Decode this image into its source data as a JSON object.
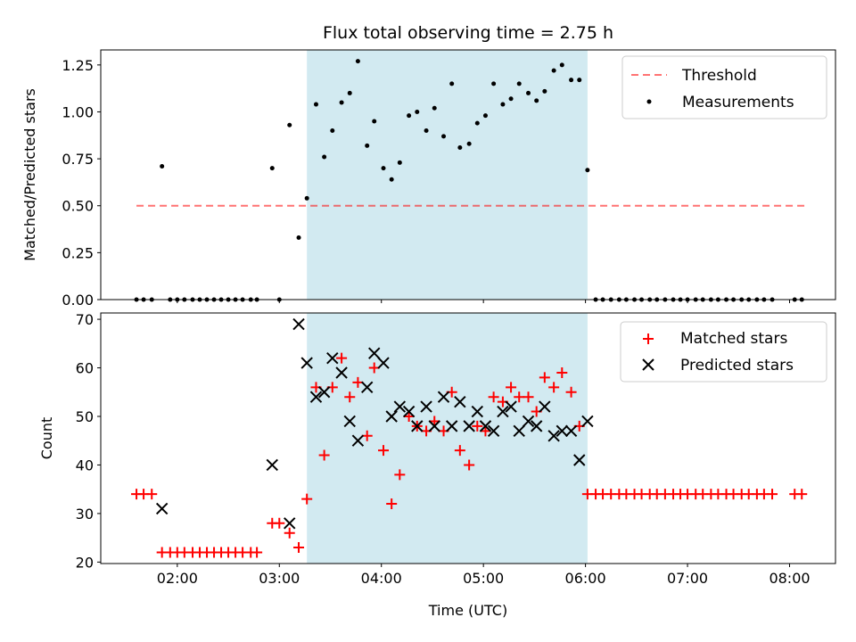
{
  "title": "Flux total observing time = 2.75 h",
  "colors": {
    "shade": "#add8e6",
    "threshold": "#ff0000",
    "measurements": "#000000",
    "matched": "#ff0000",
    "predicted": "#000000"
  },
  "chart_data": [
    {
      "type": "scatter",
      "panel": "top",
      "ylabel": "Matched/Predicted stars",
      "xlim": [
        1.25,
        8.45
      ],
      "ylim": [
        0,
        1.33
      ],
      "yticks": [
        "0.00",
        "0.25",
        "0.50",
        "0.75",
        "1.00",
        "1.25"
      ],
      "ytick_values": [
        0,
        0.25,
        0.5,
        0.75,
        1.0,
        1.25
      ],
      "shaded_span": [
        3.27,
        6.02
      ],
      "legend_position": "upper right",
      "threshold": {
        "name": "Threshold",
        "style": "dashed",
        "y": 0.5,
        "x": [
          1.6,
          8.15
        ]
      },
      "measurements": {
        "name": "Measurements",
        "x": [
          1.6,
          1.67,
          1.75,
          1.85,
          1.93,
          2.0,
          2.07,
          2.15,
          2.22,
          2.29,
          2.36,
          2.43,
          2.5,
          2.57,
          2.64,
          2.72,
          2.78,
          2.93,
          3.0,
          3.1,
          3.19,
          3.27,
          3.36,
          3.44,
          3.52,
          3.61,
          3.69,
          3.77,
          3.86,
          3.93,
          4.02,
          4.1,
          4.18,
          4.27,
          4.35,
          4.44,
          4.52,
          4.61,
          4.69,
          4.77,
          4.86,
          4.94,
          5.02,
          5.1,
          5.19,
          5.27,
          5.35,
          5.44,
          5.52,
          5.6,
          5.69,
          5.77,
          5.86,
          5.94,
          6.02,
          6.1,
          6.17,
          6.25,
          6.33,
          6.4,
          6.48,
          6.55,
          6.63,
          6.7,
          6.78,
          6.86,
          6.93,
          7.0,
          7.08,
          7.15,
          7.23,
          7.3,
          7.38,
          7.45,
          7.53,
          7.6,
          7.68,
          7.75,
          7.83,
          8.05,
          8.12
        ],
        "y": [
          0,
          0,
          0,
          0.71,
          0,
          0,
          0,
          0,
          0,
          0,
          0,
          0,
          0,
          0,
          0,
          0,
          0,
          0.7,
          0,
          0.93,
          0.33,
          0.54,
          1.04,
          0.76,
          0.9,
          1.05,
          1.1,
          1.27,
          0.82,
          0.95,
          0.7,
          0.64,
          0.73,
          0.98,
          1.0,
          0.9,
          1.02,
          0.87,
          1.15,
          0.81,
          0.83,
          0.94,
          0.98,
          1.15,
          1.04,
          1.07,
          1.15,
          1.1,
          1.06,
          1.11,
          1.22,
          1.25,
          1.17,
          1.17,
          0.69,
          0,
          0,
          0,
          0,
          0,
          0,
          0,
          0,
          0,
          0,
          0,
          0,
          0,
          0,
          0,
          0,
          0,
          0,
          0,
          0,
          0,
          0,
          0,
          0,
          0,
          0
        ]
      }
    },
    {
      "type": "scatter",
      "panel": "bottom",
      "xlabel": "Time (UTC)",
      "ylabel": "Count",
      "xlim": [
        1.25,
        8.45
      ],
      "ylim": [
        19.7,
        71.3
      ],
      "xticks": [
        "02:00",
        "03:00",
        "04:00",
        "05:00",
        "06:00",
        "07:00",
        "08:00"
      ],
      "xtick_values": [
        2,
        3,
        4,
        5,
        6,
        7,
        8
      ],
      "yticks": [
        "20",
        "30",
        "40",
        "50",
        "60",
        "70"
      ],
      "ytick_values": [
        20,
        30,
        40,
        50,
        60,
        70
      ],
      "shaded_span": [
        3.27,
        6.02
      ],
      "legend_position": "upper right",
      "matched": {
        "name": "Matched stars",
        "marker": "+",
        "x": [
          1.6,
          1.67,
          1.75,
          1.85,
          1.93,
          2.0,
          2.07,
          2.15,
          2.22,
          2.29,
          2.36,
          2.43,
          2.5,
          2.57,
          2.64,
          2.72,
          2.78,
          2.93,
          3.0,
          3.1,
          3.19,
          3.27,
          3.36,
          3.44,
          3.52,
          3.61,
          3.69,
          3.77,
          3.86,
          3.93,
          4.02,
          4.1,
          4.18,
          4.27,
          4.35,
          4.44,
          4.52,
          4.61,
          4.69,
          4.77,
          4.86,
          4.94,
          5.02,
          5.1,
          5.19,
          5.27,
          5.35,
          5.44,
          5.52,
          5.6,
          5.69,
          5.77,
          5.86,
          5.94,
          6.02,
          6.1,
          6.17,
          6.25,
          6.33,
          6.4,
          6.48,
          6.55,
          6.63,
          6.7,
          6.78,
          6.86,
          6.93,
          7.0,
          7.08,
          7.15,
          7.23,
          7.3,
          7.38,
          7.45,
          7.53,
          7.6,
          7.68,
          7.75,
          7.83,
          8.05,
          8.12
        ],
        "y": [
          34,
          34,
          34,
          22,
          22,
          22,
          22,
          22,
          22,
          22,
          22,
          22,
          22,
          22,
          22,
          22,
          22,
          28,
          28,
          26,
          23,
          33,
          56,
          42,
          56,
          62,
          54,
          57,
          46,
          60,
          43,
          32,
          38,
          50,
          48,
          47,
          49,
          47,
          55,
          43,
          40,
          48,
          47,
          54,
          53,
          56,
          54,
          54,
          51,
          58,
          56,
          59,
          55,
          48,
          34,
          34,
          34,
          34,
          34,
          34,
          34,
          34,
          34,
          34,
          34,
          34,
          34,
          34,
          34,
          34,
          34,
          34,
          34,
          34,
          34,
          34,
          34,
          34,
          34,
          34,
          34
        ]
      },
      "predicted": {
        "name": "Predicted stars",
        "marker": "x",
        "x": [
          1.85,
          2.93,
          3.1,
          3.19,
          3.27,
          3.36,
          3.44,
          3.52,
          3.61,
          3.69,
          3.77,
          3.86,
          3.93,
          4.02,
          4.1,
          4.18,
          4.27,
          4.35,
          4.44,
          4.52,
          4.61,
          4.69,
          4.77,
          4.86,
          4.94,
          5.02,
          5.1,
          5.19,
          5.27,
          5.35,
          5.44,
          5.52,
          5.6,
          5.69,
          5.77,
          5.86,
          5.94,
          6.02
        ],
        "y": [
          31,
          40,
          28,
          69,
          61,
          54,
          55,
          62,
          59,
          49,
          45,
          56,
          63,
          61,
          50,
          52,
          51,
          48,
          52,
          48,
          54,
          48,
          53,
          48,
          51,
          48,
          47,
          51,
          52,
          47,
          49,
          48,
          52,
          46,
          47,
          47,
          41,
          49
        ]
      }
    }
  ]
}
